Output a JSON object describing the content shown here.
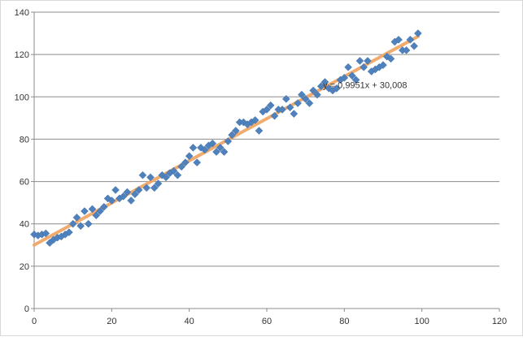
{
  "chart_data": {
    "type": "scatter",
    "title": "",
    "xlabel": "",
    "ylabel": "",
    "xlim": [
      0,
      120
    ],
    "ylim": [
      0,
      140
    ],
    "x_ticks": [
      0,
      20,
      40,
      60,
      80,
      100,
      120
    ],
    "y_ticks": [
      0,
      20,
      40,
      60,
      80,
      100,
      120,
      140
    ],
    "grid": "horizontal",
    "legend": "none",
    "marker_color": "#4F81BD",
    "trendline_color": "#F0A868",
    "trendline": {
      "slope": 0.9951,
      "intercept": 30.008,
      "label": "y = 0,9951x + 30,008"
    },
    "series": [
      {
        "marker": "diamond",
        "x": [
          0,
          1,
          2,
          3,
          4,
          5,
          6,
          7,
          8,
          9,
          10,
          11,
          12,
          13,
          14,
          15,
          16,
          17,
          18,
          19,
          20,
          21,
          22,
          23,
          24,
          25,
          26,
          27,
          28,
          29,
          30,
          31,
          32,
          33,
          34,
          35,
          36,
          37,
          38,
          39,
          40,
          41,
          42,
          43,
          44,
          45,
          46,
          47,
          48,
          49,
          50,
          51,
          52,
          53,
          54,
          55,
          56,
          57,
          58,
          59,
          60,
          61,
          62,
          63,
          64,
          65,
          66,
          67,
          68,
          69,
          70,
          71,
          72,
          73,
          74,
          75,
          76,
          77,
          78,
          79,
          80,
          81,
          82,
          83,
          84,
          85,
          86,
          87,
          88,
          89,
          90,
          91,
          92,
          93,
          94,
          95,
          96,
          97,
          98,
          99
        ],
        "y": [
          35,
          34.5,
          35,
          35.5,
          31,
          32.5,
          33.5,
          34,
          35,
          36,
          40,
          43,
          39,
          46,
          40,
          47,
          44,
          46,
          48,
          52,
          51,
          56,
          52,
          53,
          55,
          51,
          54,
          56,
          63,
          57,
          62,
          57,
          59,
          63,
          62,
          64,
          65,
          63,
          67,
          69,
          72,
          76,
          69,
          76,
          75,
          77,
          78,
          74,
          76,
          74,
          79,
          82,
          84,
          88,
          88,
          87,
          88,
          89,
          84,
          93,
          94,
          96,
          91,
          94,
          94,
          99,
          95,
          92,
          97,
          101,
          99,
          97,
          103,
          101,
          105,
          107,
          104,
          103,
          104,
          108,
          109,
          114,
          110,
          108,
          117,
          114,
          117,
          112,
          113,
          114,
          115,
          119,
          118,
          126,
          127,
          122,
          122,
          127,
          124,
          130
        ]
      }
    ]
  }
}
